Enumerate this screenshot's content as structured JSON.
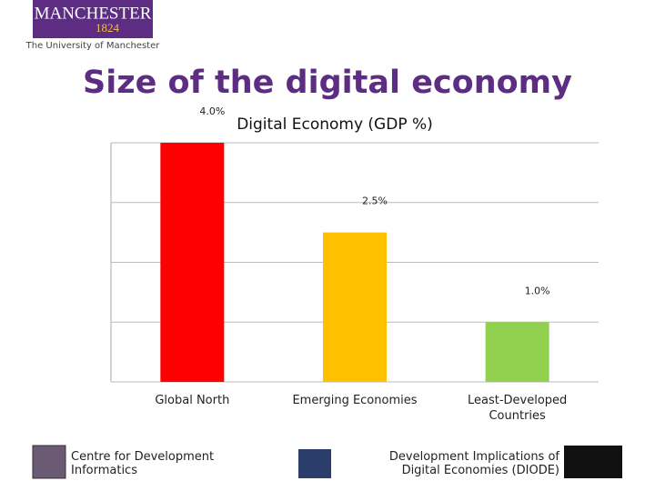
{
  "header": {
    "logo_name": "MANCHESTER",
    "logo_year": "1824",
    "logo_subtitle": "The University of Manchester",
    "title": "Size of the digital economy"
  },
  "chart_data": {
    "type": "bar",
    "title": "Digital Economy (GDP %)",
    "categories": [
      "Global North",
      "Emerging Economies",
      "Least-Developed Countries"
    ],
    "values": [
      4.0,
      2.5,
      1.0
    ],
    "value_labels": [
      "4.0%",
      "2.5%",
      "1.0%"
    ],
    "colors": [
      "#ff0000",
      "#ffc000",
      "#92d050"
    ],
    "ylim": [
      0,
      4
    ],
    "yticks": [
      0,
      1,
      2,
      3,
      4
    ],
    "grid": true,
    "show_tick_labels": false
  },
  "footer": {
    "left": "Centre for Development Informatics",
    "right": "Development Implications of Digital Economies (DIODE)"
  }
}
